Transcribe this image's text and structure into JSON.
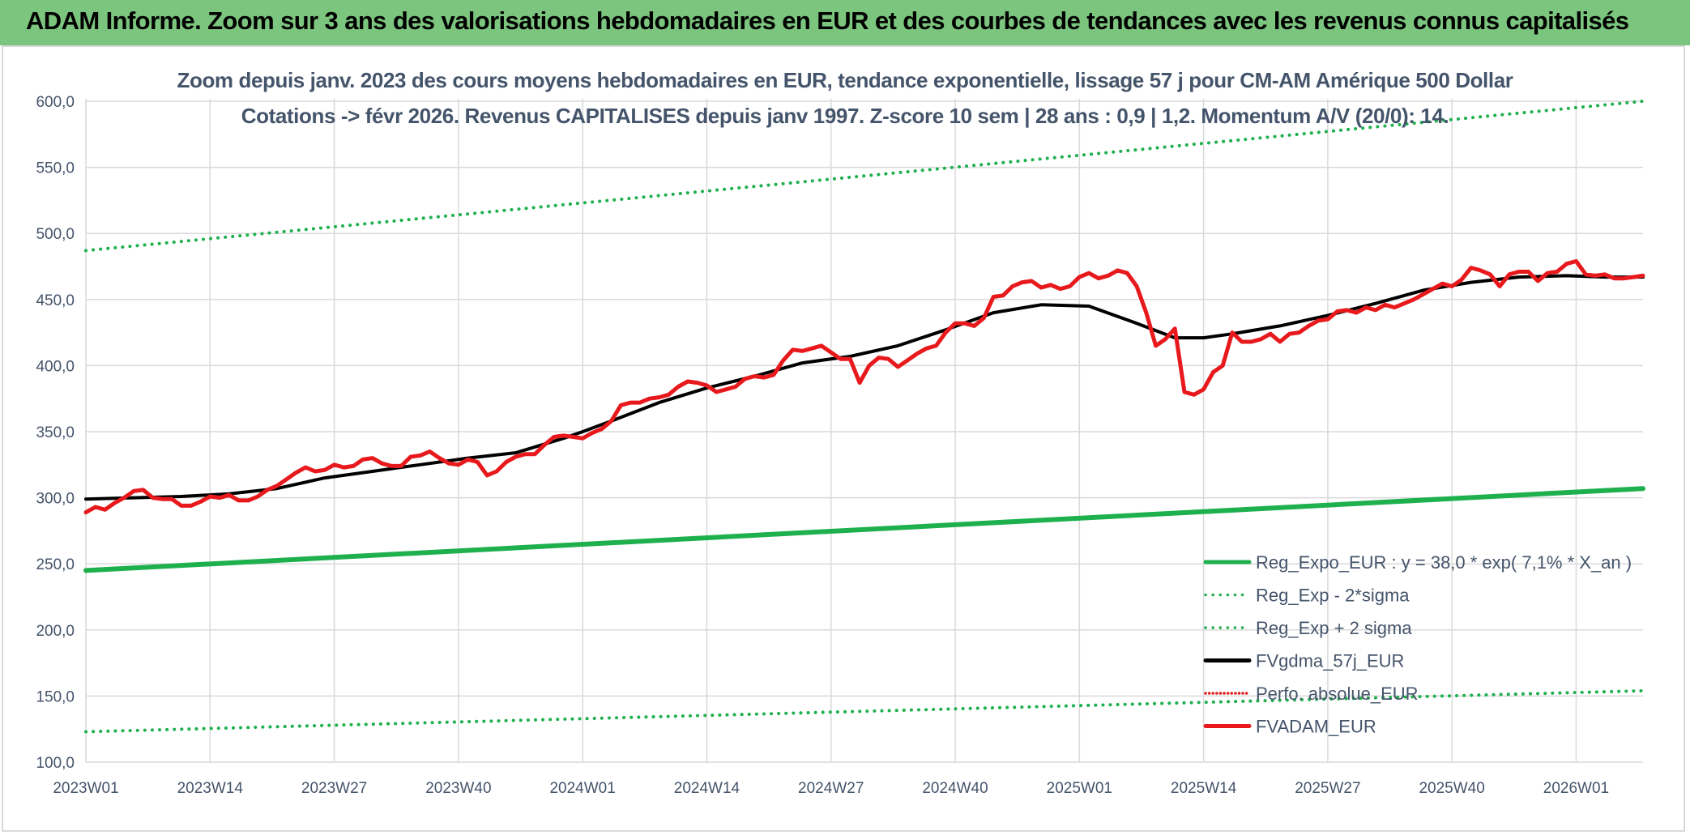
{
  "banner": {
    "title": "ADAM Informe. Zoom sur 3 ans des valorisations hebdomadaires en EUR et des courbes de tendances avec les revenus connus capitalisés",
    "color": "#7cc57e"
  },
  "chart_data": {
    "type": "line",
    "title_line1": "Zoom depuis janv. 2023 des cours moyens hebdomadaires en EUR, tendance exponentielle, lissage 57 j pour CM-AM Amérique 500 Dollar",
    "title_line2": "Cotations -> févr 2026. Revenus CAPITALISES depuis janv 1997. Z-score 10 sem | 28 ans : 0,9 | 1,2. Momentum A/V (20/0): 14.",
    "xlabel": "",
    "ylabel": "",
    "ylim": [
      100,
      600
    ],
    "yticks": [
      "100,0",
      "150,0",
      "200,0",
      "250,0",
      "300,0",
      "350,0",
      "400,0",
      "450,0",
      "500,0",
      "550,0",
      "600,0"
    ],
    "xtick_labels": [
      "2023W01",
      "2023W14",
      "2023W27",
      "2023W40",
      "2024W01",
      "2024W14",
      "2024W27",
      "2024W40",
      "2025W01",
      "2025W14",
      "2025W27",
      "2025W40",
      "2026W01"
    ],
    "x_range_weeks": [
      0,
      163
    ],
    "grid": true,
    "legend_position": "bottom-right",
    "series": [
      {
        "name": "Reg_Expo_EUR : y = 38,0 * exp( 7,1% *  X_an )",
        "color": "#1fb04e",
        "style": "solid-thick",
        "points": [
          [
            0,
            245
          ],
          [
            163,
            307
          ]
        ]
      },
      {
        "name": "Reg_Exp - 2*sigma",
        "color": "#1fb04e",
        "style": "dotted",
        "points": [
          [
            0,
            123
          ],
          [
            163,
            154
          ]
        ]
      },
      {
        "name": "Reg_Exp + 2 sigma",
        "color": "#1fb04e",
        "style": "dotted",
        "points": [
          [
            0,
            487
          ],
          [
            163,
            600
          ]
        ]
      },
      {
        "name": "FVgdma_57j_EUR",
        "color": "#000000",
        "style": "solid",
        "points": [
          [
            0,
            299
          ],
          [
            5,
            300
          ],
          [
            10,
            301
          ],
          [
            15,
            303
          ],
          [
            20,
            307
          ],
          [
            25,
            315
          ],
          [
            30,
            320
          ],
          [
            35,
            325
          ],
          [
            40,
            330
          ],
          [
            45,
            334
          ],
          [
            50,
            345
          ],
          [
            52,
            350
          ],
          [
            55,
            358
          ],
          [
            60,
            372
          ],
          [
            65,
            383
          ],
          [
            70,
            392
          ],
          [
            75,
            402
          ],
          [
            80,
            407
          ],
          [
            85,
            415
          ],
          [
            90,
            427
          ],
          [
            95,
            440
          ],
          [
            100,
            446
          ],
          [
            105,
            445
          ],
          [
            110,
            432
          ],
          [
            114,
            421
          ],
          [
            117,
            421
          ],
          [
            120,
            424
          ],
          [
            125,
            430
          ],
          [
            130,
            438
          ],
          [
            135,
            447
          ],
          [
            140,
            457
          ],
          [
            145,
            463
          ],
          [
            150,
            467
          ],
          [
            155,
            468
          ],
          [
            159,
            467
          ],
          [
            163,
            467
          ]
        ]
      },
      {
        "name": "Perfo. absolue_EUR",
        "color": "#e02020",
        "style": "dotted",
        "points": []
      },
      {
        "name": "FVADAM_EUR",
        "color": "#e8191c",
        "style": "solid-thick",
        "points": [
          [
            0,
            289
          ],
          [
            1,
            293
          ],
          [
            2,
            291
          ],
          [
            3,
            296
          ],
          [
            4,
            300
          ],
          [
            5,
            305
          ],
          [
            6,
            306
          ],
          [
            7,
            300
          ],
          [
            8,
            299
          ],
          [
            9,
            299
          ],
          [
            10,
            294
          ],
          [
            11,
            294
          ],
          [
            12,
            297
          ],
          [
            13,
            301
          ],
          [
            14,
            300
          ],
          [
            15,
            302
          ],
          [
            16,
            298
          ],
          [
            17,
            298
          ],
          [
            18,
            301
          ],
          [
            19,
            306
          ],
          [
            20,
            309
          ],
          [
            21,
            314
          ],
          [
            22,
            319
          ],
          [
            23,
            323
          ],
          [
            24,
            320
          ],
          [
            25,
            321
          ],
          [
            26,
            325
          ],
          [
            27,
            323
          ],
          [
            28,
            324
          ],
          [
            29,
            329
          ],
          [
            30,
            330
          ],
          [
            31,
            326
          ],
          [
            32,
            324
          ],
          [
            33,
            324
          ],
          [
            34,
            331
          ],
          [
            35,
            332
          ],
          [
            36,
            335
          ],
          [
            37,
            330
          ],
          [
            38,
            326
          ],
          [
            39,
            325
          ],
          [
            40,
            329
          ],
          [
            41,
            327
          ],
          [
            42,
            317
          ],
          [
            43,
            320
          ],
          [
            44,
            327
          ],
          [
            45,
            331
          ],
          [
            46,
            333
          ],
          [
            47,
            333
          ],
          [
            48,
            340
          ],
          [
            49,
            346
          ],
          [
            50,
            347
          ],
          [
            51,
            346
          ],
          [
            52,
            345
          ],
          [
            53,
            349
          ],
          [
            54,
            352
          ],
          [
            55,
            358
          ],
          [
            56,
            370
          ],
          [
            57,
            372
          ],
          [
            58,
            372
          ],
          [
            59,
            375
          ],
          [
            60,
            376
          ],
          [
            61,
            378
          ],
          [
            62,
            384
          ],
          [
            63,
            388
          ],
          [
            64,
            387
          ],
          [
            65,
            385
          ],
          [
            66,
            380
          ],
          [
            67,
            382
          ],
          [
            68,
            384
          ],
          [
            69,
            390
          ],
          [
            70,
            392
          ],
          [
            71,
            391
          ],
          [
            72,
            393
          ],
          [
            73,
            404
          ],
          [
            74,
            412
          ],
          [
            75,
            411
          ],
          [
            76,
            413
          ],
          [
            77,
            415
          ],
          [
            78,
            410
          ],
          [
            79,
            405
          ],
          [
            80,
            405
          ],
          [
            81,
            387
          ],
          [
            82,
            400
          ],
          [
            83,
            406
          ],
          [
            84,
            405
          ],
          [
            85,
            399
          ],
          [
            86,
            404
          ],
          [
            87,
            409
          ],
          [
            88,
            413
          ],
          [
            89,
            415
          ],
          [
            90,
            425
          ],
          [
            91,
            432
          ],
          [
            92,
            432
          ],
          [
            93,
            430
          ],
          [
            94,
            436
          ],
          [
            95,
            452
          ],
          [
            96,
            453
          ],
          [
            97,
            460
          ],
          [
            98,
            463
          ],
          [
            99,
            464
          ],
          [
            100,
            459
          ],
          [
            101,
            461
          ],
          [
            102,
            458
          ],
          [
            103,
            460
          ],
          [
            104,
            467
          ],
          [
            105,
            470
          ],
          [
            106,
            466
          ],
          [
            107,
            468
          ],
          [
            108,
            472
          ],
          [
            109,
            470
          ],
          [
            110,
            460
          ],
          [
            111,
            440
          ],
          [
            112,
            415
          ],
          [
            113,
            420
          ],
          [
            114,
            428
          ],
          [
            115,
            380
          ],
          [
            116,
            378
          ],
          [
            117,
            382
          ],
          [
            118,
            395
          ],
          [
            119,
            400
          ],
          [
            120,
            425
          ],
          [
            121,
            418
          ],
          [
            122,
            418
          ],
          [
            123,
            420
          ],
          [
            124,
            424
          ],
          [
            125,
            418
          ],
          [
            126,
            424
          ],
          [
            127,
            425
          ],
          [
            128,
            430
          ],
          [
            129,
            434
          ],
          [
            130,
            435
          ],
          [
            131,
            441
          ],
          [
            132,
            442
          ],
          [
            133,
            440
          ],
          [
            134,
            444
          ],
          [
            135,
            442
          ],
          [
            136,
            446
          ],
          [
            137,
            444
          ],
          [
            138,
            447
          ],
          [
            139,
            450
          ],
          [
            140,
            454
          ],
          [
            141,
            458
          ],
          [
            142,
            462
          ],
          [
            143,
            460
          ],
          [
            144,
            465
          ],
          [
            145,
            474
          ],
          [
            146,
            472
          ],
          [
            147,
            469
          ],
          [
            148,
            460
          ],
          [
            149,
            469
          ],
          [
            150,
            471
          ],
          [
            151,
            471
          ],
          [
            152,
            464
          ],
          [
            153,
            470
          ],
          [
            154,
            471
          ],
          [
            155,
            477
          ],
          [
            156,
            479
          ],
          [
            157,
            469
          ],
          [
            158,
            468
          ],
          [
            159,
            469
          ],
          [
            160,
            466
          ],
          [
            161,
            466
          ],
          [
            162,
            467
          ],
          [
            163,
            468
          ]
        ]
      }
    ]
  }
}
